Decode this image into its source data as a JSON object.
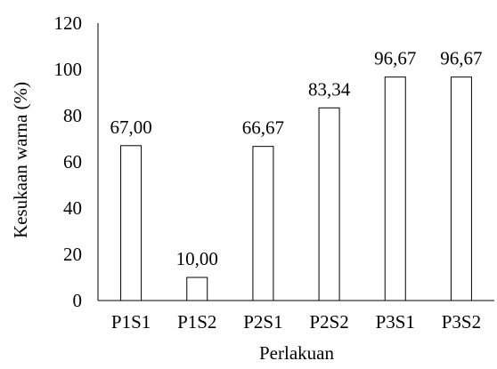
{
  "chart_data": {
    "type": "bar",
    "title": "",
    "xlabel": "Perlakuan",
    "ylabel": "Kesukaan warna (%)",
    "categories": [
      "P1S1",
      "P1S2",
      "P2S1",
      "P2S2",
      "P3S1",
      "P3S2"
    ],
    "values": [
      67.0,
      10.0,
      66.67,
      83.34,
      96.67,
      96.67
    ],
    "data_labels": [
      "67,00",
      "10,00",
      "66,67",
      "83,34",
      "96,67",
      "96,67"
    ],
    "ylim": [
      0,
      120
    ],
    "yticks": [
      0,
      20,
      40,
      60,
      80,
      100,
      120
    ],
    "grid": false,
    "legend": "none",
    "bar_fill": "#ffffff",
    "bar_stroke": "#000000",
    "axis_color": "#000000"
  }
}
